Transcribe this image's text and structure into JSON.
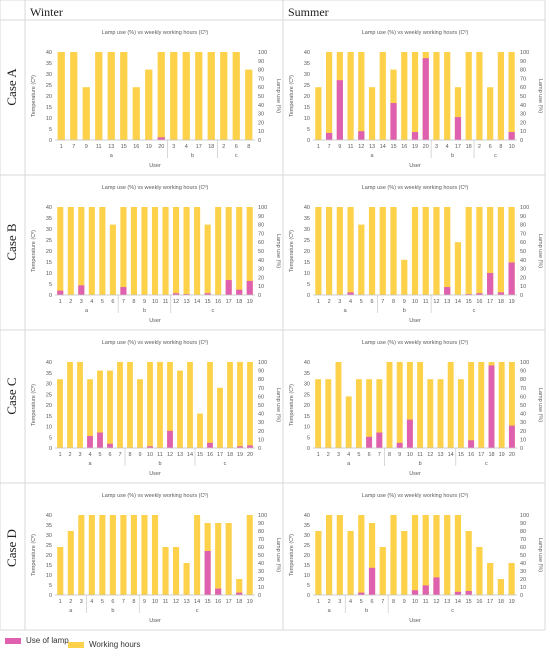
{
  "column_headers": [
    "Winter",
    "Summer"
  ],
  "row_headers": [
    "Case A",
    "Case B",
    "Case C",
    "Case D"
  ],
  "legend": {
    "lamp_label": "Use of lamp",
    "hours_label": "Working hours"
  },
  "colors": {
    "lamp": "#e060b0",
    "hours": "#fdd24a",
    "axis": "#bfbfbf",
    "text": "#595959"
  },
  "chart_data": [
    {
      "id": "case-a-winter",
      "type": "bar",
      "title": "Lamp use (%) vs weekly working hours (Cº)",
      "xlabel": "User",
      "ylabel": "Temperature (Cº)",
      "y2label": "Lamp use (%)",
      "ylim": [
        0,
        40
      ],
      "y2lim": [
        0,
        100
      ],
      "categories": [
        "1",
        "7",
        "9",
        "11",
        "13",
        "15",
        "16",
        "19",
        "20",
        "3",
        "4",
        "17",
        "18",
        "2",
        "6",
        "8"
      ],
      "groups": [
        {
          "label": "a",
          "from": 0,
          "to": 8
        },
        {
          "label": "b",
          "from": 9,
          "to": 12
        },
        {
          "label": "c",
          "from": 13,
          "to": 15
        }
      ],
      "series": [
        {
          "name": "Working hours",
          "axis": "left",
          "values": [
            40,
            40,
            24,
            40,
            40,
            40,
            24,
            32,
            40,
            40,
            40,
            40,
            40,
            40,
            40,
            32
          ]
        },
        {
          "name": "Use of lamp",
          "axis": "right",
          "values": [
            0,
            0,
            0,
            0,
            0,
            0,
            0,
            0,
            3,
            0,
            0,
            0,
            0,
            0,
            0,
            0
          ]
        }
      ]
    },
    {
      "id": "case-a-summer",
      "type": "bar",
      "title": "Lamp use (%) vs weekly working hours (Cº)",
      "xlabel": "User",
      "ylabel": "Temperature (Cº)",
      "y2label": "Lamp use (%)",
      "ylim": [
        0,
        40
      ],
      "y2lim": [
        0,
        100
      ],
      "categories": [
        "1",
        "7",
        "9",
        "11",
        "12",
        "13",
        "14",
        "15",
        "16",
        "19",
        "20",
        "3",
        "4",
        "17",
        "18",
        "2",
        "6",
        "8",
        "10"
      ],
      "groups": [
        {
          "label": "a",
          "from": 0,
          "to": 10
        },
        {
          "label": "b",
          "from": 11,
          "to": 14
        },
        {
          "label": "c",
          "from": 15,
          "to": 18
        }
      ],
      "series": [
        {
          "name": "Working hours",
          "axis": "left",
          "values": [
            24,
            40,
            40,
            40,
            40,
            24,
            40,
            32,
            40,
            40,
            40,
            40,
            40,
            24,
            40,
            40,
            24,
            40,
            40
          ]
        },
        {
          "name": "Use of lamp",
          "axis": "right",
          "values": [
            0,
            8,
            68,
            0,
            10,
            0,
            0,
            42,
            0,
            9,
            93,
            0,
            0,
            26,
            0,
            0,
            0,
            0,
            9
          ]
        }
      ]
    },
    {
      "id": "case-b-winter",
      "type": "bar",
      "title": "Lamp use (%) vs weekly working hours (Cº)",
      "xlabel": "User",
      "ylabel": "Temperature (Cº)",
      "y2label": "Lamp use (%)",
      "ylim": [
        0,
        40
      ],
      "y2lim": [
        0,
        100
      ],
      "categories": [
        "1",
        "2",
        "3",
        "4",
        "5",
        "6",
        "7",
        "8",
        "9",
        "10",
        "11",
        "12",
        "13",
        "14",
        "15",
        "16",
        "17",
        "18",
        "19"
      ],
      "groups": [
        {
          "label": "a",
          "from": 0,
          "to": 5
        },
        {
          "label": "b",
          "from": 6,
          "to": 10
        },
        {
          "label": "c",
          "from": 11,
          "to": 18
        }
      ],
      "series": [
        {
          "name": "Working hours",
          "axis": "left",
          "values": [
            40,
            40,
            40,
            40,
            40,
            32,
            40,
            40,
            40,
            40,
            40,
            40,
            40,
            40,
            32,
            40,
            40,
            40,
            40
          ]
        },
        {
          "name": "Use of lamp",
          "axis": "right",
          "values": [
            5,
            0,
            11,
            0,
            0,
            0,
            9,
            0,
            0,
            0,
            0,
            2,
            1,
            0,
            2,
            0,
            17,
            6,
            16
          ]
        }
      ]
    },
    {
      "id": "case-b-summer",
      "type": "bar",
      "title": "Lamp use (%) vs weekly working hours (Cº)",
      "xlabel": "User",
      "ylabel": "Temperature (Cº)",
      "y2label": "Lamp use (%)",
      "ylim": [
        0,
        40
      ],
      "y2lim": [
        0,
        100
      ],
      "categories": [
        "1",
        "2",
        "3",
        "4",
        "5",
        "6",
        "7",
        "8",
        "9",
        "10",
        "11",
        "12",
        "13",
        "14",
        "15",
        "16",
        "17",
        "18",
        "19"
      ],
      "groups": [
        {
          "label": "a",
          "from": 0,
          "to": 5
        },
        {
          "label": "b",
          "from": 6,
          "to": 10
        },
        {
          "label": "c",
          "from": 11,
          "to": 18
        }
      ],
      "series": [
        {
          "name": "Working hours",
          "axis": "left",
          "values": [
            40,
            40,
            40,
            40,
            32,
            40,
            40,
            40,
            16,
            40,
            40,
            40,
            40,
            24,
            40,
            40,
            40,
            40,
            40
          ]
        },
        {
          "name": "Use of lamp",
          "axis": "right",
          "values": [
            0,
            0,
            0,
            3,
            0,
            0,
            0,
            0,
            0,
            0,
            0,
            0,
            9,
            0,
            1,
            2,
            25,
            3,
            37
          ]
        }
      ]
    },
    {
      "id": "case-c-winter",
      "type": "bar",
      "title": "Lamp use (%) vs weekly working hours (Cº)",
      "xlabel": "User",
      "ylabel": "Temperature (Cº)",
      "y2label": "Lamp use (%)",
      "ylim": [
        0,
        40
      ],
      "y2lim": [
        0,
        100
      ],
      "categories": [
        "1",
        "2",
        "3",
        "4",
        "5",
        "6",
        "7",
        "8",
        "9",
        "10",
        "11",
        "12",
        "13",
        "14",
        "15",
        "16",
        "17",
        "18",
        "19",
        "20"
      ],
      "groups": [
        {
          "label": "a",
          "from": 0,
          "to": 6
        },
        {
          "label": "b",
          "from": 7,
          "to": 13
        },
        {
          "label": "c",
          "from": 14,
          "to": 19
        }
      ],
      "series": [
        {
          "name": "Working hours",
          "axis": "left",
          "values": [
            32,
            40,
            40,
            32,
            36,
            36,
            40,
            40,
            32,
            40,
            40,
            40,
            36,
            40,
            16,
            40,
            28,
            40,
            40,
            40
          ]
        },
        {
          "name": "Use of lamp",
          "axis": "right",
          "values": [
            0,
            0,
            0,
            14,
            18,
            5,
            0,
            0,
            0,
            2,
            0,
            20,
            0,
            0,
            0,
            6,
            0,
            0,
            2,
            3
          ]
        }
      ]
    },
    {
      "id": "case-c-summer",
      "type": "bar",
      "title": "Lamp use (%) vs weekly working hours (Cº)",
      "xlabel": "User",
      "ylabel": "Temperature (Cº)",
      "y2label": "Lamp use (%)",
      "ylim": [
        0,
        40
      ],
      "y2lim": [
        0,
        100
      ],
      "categories": [
        "1",
        "2",
        "3",
        "4",
        "5",
        "6",
        "7",
        "8",
        "9",
        "10",
        "11",
        "12",
        "13",
        "14",
        "15",
        "16",
        "17",
        "18",
        "19",
        "20"
      ],
      "groups": [
        {
          "label": "a",
          "from": 0,
          "to": 6
        },
        {
          "label": "b",
          "from": 7,
          "to": 13
        },
        {
          "label": "c",
          "from": 14,
          "to": 19
        }
      ],
      "series": [
        {
          "name": "Working hours",
          "axis": "left",
          "values": [
            32,
            32,
            40,
            24,
            32,
            32,
            32,
            40,
            40,
            40,
            40,
            32,
            32,
            40,
            32,
            40,
            40,
            40,
            40,
            40
          ]
        },
        {
          "name": "Use of lamp",
          "axis": "right",
          "values": [
            0,
            0,
            0,
            0,
            0,
            13,
            18,
            0,
            6,
            33,
            0,
            0,
            0,
            0,
            0,
            9,
            0,
            96,
            0,
            26
          ]
        }
      ]
    },
    {
      "id": "case-d-winter",
      "type": "bar",
      "title": "Lamp use (%) vs weekly working hours (Cº)",
      "xlabel": "User",
      "ylabel": "Temperature (Cº)",
      "y2label": "Lamp use (%)",
      "ylim": [
        0,
        40
      ],
      "y2lim": [
        0,
        100
      ],
      "categories": [
        "1",
        "2",
        "3",
        "4",
        "5",
        "6",
        "7",
        "8",
        "9",
        "10",
        "11",
        "12",
        "13",
        "14",
        "15",
        "16",
        "17",
        "18",
        "19"
      ],
      "groups": [
        {
          "label": "a",
          "from": 0,
          "to": 2
        },
        {
          "label": "b",
          "from": 3,
          "to": 7
        },
        {
          "label": "c",
          "from": 8,
          "to": 18
        }
      ],
      "series": [
        {
          "name": "Working hours",
          "axis": "left",
          "values": [
            24,
            32,
            40,
            40,
            40,
            40,
            40,
            40,
            40,
            40,
            24,
            24,
            16,
            40,
            36,
            36,
            36,
            8,
            40
          ]
        },
        {
          "name": "Use of lamp",
          "axis": "right",
          "values": [
            0,
            0,
            0,
            0,
            0,
            0,
            0,
            0,
            0,
            0,
            0,
            0,
            0,
            0,
            55,
            8,
            0,
            3,
            0
          ]
        }
      ]
    },
    {
      "id": "case-d-summer",
      "type": "bar",
      "title": "Lamp use (%) vs weekly working hours (Cº)",
      "xlabel": "User",
      "ylabel": "Temperature (Cº)",
      "y2label": "Lamp use (%)",
      "ylim": [
        0,
        40
      ],
      "y2lim": [
        0,
        100
      ],
      "categories": [
        "1",
        "2",
        "3",
        "4",
        "5",
        "6",
        "7",
        "8",
        "9",
        "10",
        "11",
        "12",
        "13",
        "14",
        "15",
        "16",
        "17",
        "18",
        "19"
      ],
      "groups": [
        {
          "label": "a",
          "from": 0,
          "to": 2
        },
        {
          "label": "b",
          "from": 3,
          "to": 6
        },
        {
          "label": "c",
          "from": 7,
          "to": 18
        }
      ],
      "series": [
        {
          "name": "Working hours",
          "axis": "left",
          "values": [
            32,
            40,
            40,
            32,
            40,
            36,
            24,
            40,
            32,
            40,
            40,
            40,
            40,
            40,
            32,
            24,
            16,
            8,
            16
          ]
        },
        {
          "name": "Use of lamp",
          "axis": "right",
          "values": [
            0,
            0,
            0,
            0,
            3,
            34,
            0,
            0,
            0,
            6,
            12,
            22,
            0,
            4,
            5,
            0,
            0,
            0,
            0
          ]
        }
      ]
    }
  ]
}
